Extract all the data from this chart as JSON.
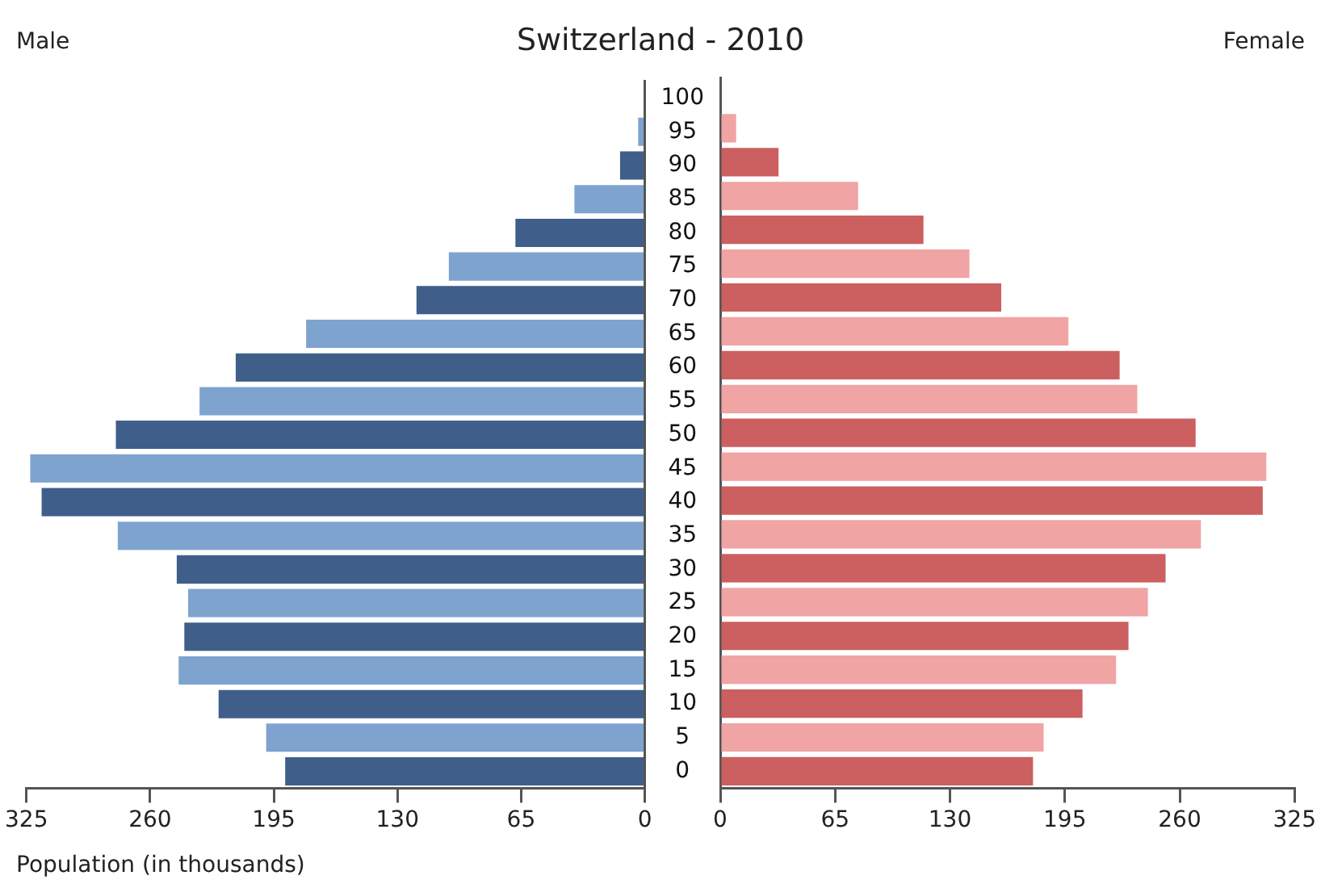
{
  "chart_data": [
    {
      "type": "bar",
      "orientation": "horizontal",
      "title": "Switzerland - 2010",
      "subtitle": "Male",
      "xlabel": "Population (in thousands)",
      "categories": [
        "100",
        "95",
        "90",
        "85",
        "80",
        "75",
        "70",
        "65",
        "60",
        "55",
        "50",
        "45",
        "40",
        "35",
        "30",
        "25",
        "20",
        "15",
        "10",
        "5",
        "0"
      ],
      "values": [
        0,
        3.5,
        13,
        37,
        68,
        103,
        120,
        178,
        215,
        234,
        278,
        323,
        317,
        277,
        246,
        240,
        242,
        245,
        224,
        199,
        189
      ],
      "colors": [
        "#3f5f8a",
        "#7ea3cf",
        "#3f5f8a",
        "#7ea3cf",
        "#3f5f8a",
        "#7ea3cf",
        "#3f5f8a",
        "#7ea3cf",
        "#3f5f8a",
        "#7ea3cf",
        "#3f5f8a",
        "#7ea3cf",
        "#3f5f8a",
        "#7ea3cf",
        "#3f5f8a",
        "#7ea3cf",
        "#3f5f8a",
        "#7ea3cf",
        "#3f5f8a",
        "#7ea3cf",
        "#3f5f8a"
      ],
      "xlim": [
        325,
        0
      ],
      "xticks": [
        325,
        260,
        195,
        130,
        65,
        0
      ]
    },
    {
      "type": "bar",
      "orientation": "horizontal",
      "subtitle": "Female",
      "categories": [
        "100",
        "95",
        "90",
        "85",
        "80",
        "75",
        "70",
        "65",
        "60",
        "55",
        "50",
        "45",
        "40",
        "35",
        "30",
        "25",
        "20",
        "15",
        "10",
        "5",
        "0"
      ],
      "values": [
        0,
        9,
        33,
        78,
        115,
        141,
        159,
        197,
        226,
        236,
        269,
        309,
        307,
        272,
        252,
        242,
        231,
        224,
        205,
        183,
        177
      ],
      "colors": [
        "#cc5f5f",
        "#f0a4a4",
        "#cc5f5f",
        "#f0a4a4",
        "#cc5f5f",
        "#f0a4a4",
        "#cc5f5f",
        "#f0a4a4",
        "#cc5f5f",
        "#f0a4a4",
        "#cc5f5f",
        "#f0a4a4",
        "#cc5f5f",
        "#f0a4a4",
        "#cc5f5f",
        "#f0a4a4",
        "#cc5f5f",
        "#f0a4a4",
        "#cc5f5f",
        "#f0a4a4",
        "#cc5f5f"
      ],
      "xlim": [
        0,
        325
      ],
      "xticks": [
        0,
        65,
        130,
        195,
        260,
        325
      ],
      "tick_labels": "x"
    }
  ]
}
